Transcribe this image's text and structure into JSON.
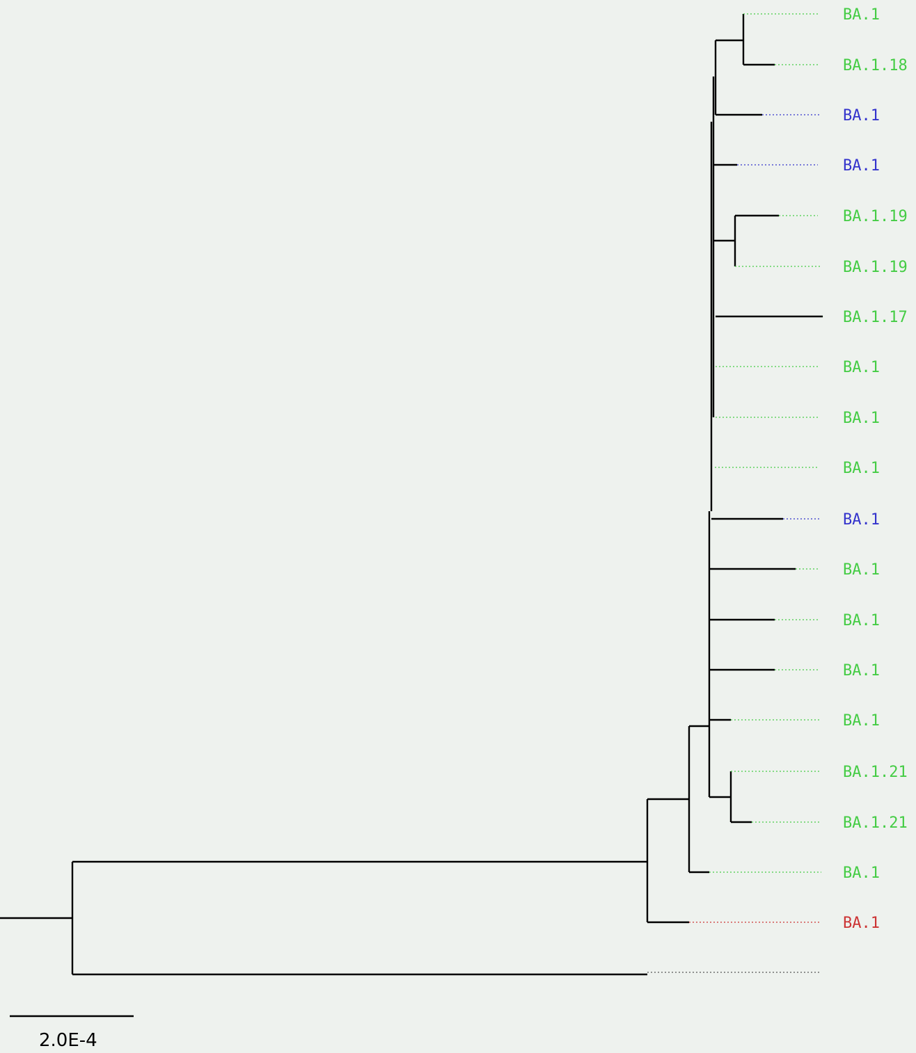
{
  "colors": {
    "background": "#eef2ee",
    "branch": "#000000",
    "green": "#44cc44",
    "blue": "#3333cc",
    "red": "#cc3333",
    "gray": "#555555"
  },
  "tree": {
    "leaves": [
      {
        "label": "BA.1",
        "color": "green"
      },
      {
        "label": "BA.1.18",
        "color": "green"
      },
      {
        "label": "BA.1",
        "color": "blue"
      },
      {
        "label": "BA.1",
        "color": "blue"
      },
      {
        "label": "BA.1.19",
        "color": "green"
      },
      {
        "label": "BA.1.19",
        "color": "green"
      },
      {
        "label": "BA.1.17",
        "color": "green"
      },
      {
        "label": "BA.1",
        "color": "green"
      },
      {
        "label": "BA.1",
        "color": "green"
      },
      {
        "label": "BA.1",
        "color": "green"
      },
      {
        "label": "BA.1",
        "color": "blue"
      },
      {
        "label": "BA.1",
        "color": "green"
      },
      {
        "label": "BA.1",
        "color": "green"
      },
      {
        "label": "BA.1",
        "color": "green"
      },
      {
        "label": "BA.1",
        "color": "green"
      },
      {
        "label": "BA.1.21",
        "color": "green"
      },
      {
        "label": "BA.1.21",
        "color": "green"
      },
      {
        "label": "BA.1",
        "color": "green"
      },
      {
        "label": "BA.1",
        "color": "red"
      },
      {
        "label": "",
        "color": "gray"
      }
    ]
  },
  "scale": {
    "label": "2.0E-4"
  }
}
